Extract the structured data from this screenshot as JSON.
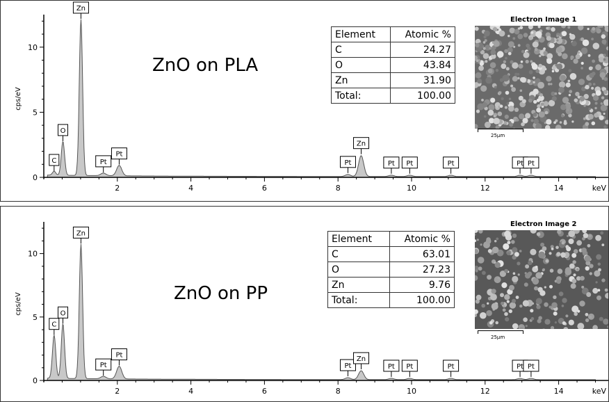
{
  "chart_data": [
    {
      "type": "line",
      "title": "ZnO on PLA",
      "xlabel": "keV",
      "ylabel": "cps/eV",
      "xlim": [
        0,
        15
      ],
      "ylim": [
        0,
        12.5
      ],
      "x_ticks": [
        2,
        4,
        6,
        8,
        10,
        12,
        14
      ],
      "y_ticks": [
        0,
        5,
        10
      ],
      "peaks": [
        {
          "label": "C",
          "x": 0.28,
          "y": 0.3
        },
        {
          "label": "O",
          "x": 0.52,
          "y": 2.6
        },
        {
          "label": "Zn",
          "x": 1.01,
          "y": 12.0
        },
        {
          "label": "Pt",
          "x": 1.62,
          "y": 0.2
        },
        {
          "label": "Pt",
          "x": 2.05,
          "y": 0.8
        },
        {
          "label": "Pt",
          "x": 8.27,
          "y": 0.15
        },
        {
          "label": "Zn",
          "x": 8.63,
          "y": 1.6
        },
        {
          "label": "Pt",
          "x": 9.45,
          "y": 0.1
        },
        {
          "label": "Pt",
          "x": 9.95,
          "y": 0.1
        },
        {
          "label": "Pt",
          "x": 11.07,
          "y": 0.1
        },
        {
          "label": "Pt",
          "x": 12.95,
          "y": 0.1
        },
        {
          "label": "Pt",
          "x": 13.25,
          "y": 0.1
        }
      ],
      "table": {
        "headers": [
          "Element",
          "Atomic %"
        ],
        "rows": [
          [
            "C",
            "24.27"
          ],
          [
            "O",
            "43.84"
          ],
          [
            "Zn",
            "31.90"
          ],
          [
            "Total:",
            "100.00"
          ]
        ]
      },
      "image_title": "Electron Image 1",
      "scale_label": "25µm"
    },
    {
      "type": "line",
      "title": "ZnO on PP",
      "xlabel": "keV",
      "ylabel": "cps/eV",
      "xlim": [
        0,
        15
      ],
      "ylim": [
        0,
        12.5
      ],
      "x_ticks": [
        2,
        4,
        6,
        8,
        10,
        12,
        14
      ],
      "y_ticks": [
        0,
        5,
        10
      ],
      "peaks": [
        {
          "label": "C",
          "x": 0.28,
          "y": 3.4
        },
        {
          "label": "O",
          "x": 0.52,
          "y": 4.3
        },
        {
          "label": "Zn",
          "x": 1.01,
          "y": 10.6
        },
        {
          "label": "Pt",
          "x": 1.62,
          "y": 0.2
        },
        {
          "label": "Pt",
          "x": 2.05,
          "y": 1.0
        },
        {
          "label": "Pt",
          "x": 8.27,
          "y": 0.15
        },
        {
          "label": "Zn",
          "x": 8.63,
          "y": 0.7
        },
        {
          "label": "Pt",
          "x": 9.45,
          "y": 0.1
        },
        {
          "label": "Pt",
          "x": 9.95,
          "y": 0.1
        },
        {
          "label": "Pt",
          "x": 11.07,
          "y": 0.1
        },
        {
          "label": "Pt",
          "x": 12.95,
          "y": 0.1
        },
        {
          "label": "Pt",
          "x": 13.25,
          "y": 0.1
        }
      ],
      "table": {
        "headers": [
          "Element",
          "Atomic %"
        ],
        "rows": [
          [
            "C",
            "63.01"
          ],
          [
            "O",
            "27.23"
          ],
          [
            "Zn",
            "9.76"
          ],
          [
            "Total:",
            "100.00"
          ]
        ]
      },
      "image_title": "Electron Image 2",
      "scale_label": "25µm"
    }
  ]
}
